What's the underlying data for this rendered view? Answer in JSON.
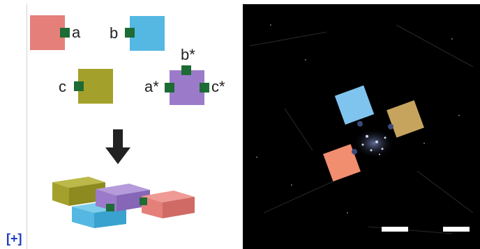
{
  "expand_link": {
    "label": "[+]"
  },
  "left_panel": {
    "labels": {
      "a": "a",
      "b": "b",
      "c": "c",
      "a_star": "a*",
      "b_star": "b*",
      "c_star": "c*"
    },
    "blocks": [
      {
        "name": "pink-block",
        "color": "#e57f7a"
      },
      {
        "name": "blue-block",
        "color": "#54b8e2"
      },
      {
        "name": "olive-block",
        "color": "#a3a12b"
      },
      {
        "name": "purple-block",
        "color": "#9b7bc9"
      }
    ],
    "binding_site_color": "#1d6b35",
    "arrow": {
      "icon": "arrow-down-icon",
      "color": "#222222"
    }
  },
  "right_panel": {
    "background": "#000000",
    "scale_bars": 2
  }
}
